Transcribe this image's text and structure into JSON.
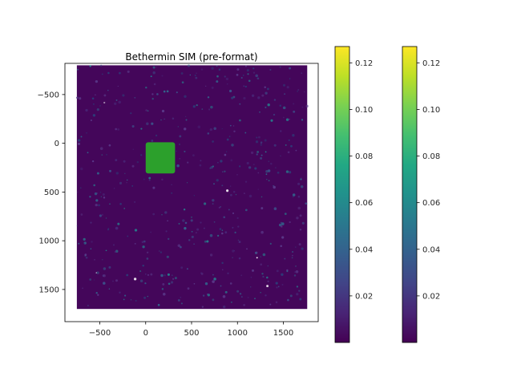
{
  "chart_data": [
    {
      "type": "heatmap",
      "title": "Bethermin SIM (pre-format)",
      "xlabel": "",
      "ylabel": "",
      "xlim": [
        -880,
        1880
      ],
      "ylim": [
        1830,
        -820
      ],
      "y_inverted": true,
      "grid": false,
      "xticks": [
        -500,
        0,
        500,
        1000,
        1500
      ],
      "xtick_labels": [
        "−500",
        "0",
        "500",
        "1000",
        "1500"
      ],
      "yticks": [
        -500,
        0,
        500,
        1000,
        1500
      ],
      "ytick_labels": [
        "−500",
        "0",
        "500",
        "1000",
        "1500"
      ],
      "point_cloud": {
        "x_range": [
          -750,
          1760
        ],
        "y_range": [
          -800,
          1700
        ],
        "background_color": "#44065a",
        "colormap": "viridis",
        "value_range": [
          0.0,
          0.127
        ]
      },
      "highlight_region": {
        "x_range": [
          0,
          320
        ],
        "y_range": [
          -10,
          310
        ],
        "color": "#2ca02c"
      }
    },
    {
      "type": "colorbar",
      "colormap": "viridis",
      "range": [
        0.0,
        0.127
      ],
      "ticks": [
        0.02,
        0.04,
        0.06,
        0.08,
        0.1,
        0.12
      ],
      "tick_labels": [
        "0.02",
        "0.04",
        "0.06",
        "0.08",
        "0.10",
        "0.12"
      ]
    },
    {
      "type": "colorbar",
      "colormap": "viridis",
      "range": [
        0.0,
        0.127
      ],
      "ticks": [
        0.02,
        0.04,
        0.06,
        0.08,
        0.1,
        0.12
      ],
      "tick_labels": [
        "0.02",
        "0.04",
        "0.06",
        "0.08",
        "0.10",
        "0.12"
      ]
    }
  ]
}
